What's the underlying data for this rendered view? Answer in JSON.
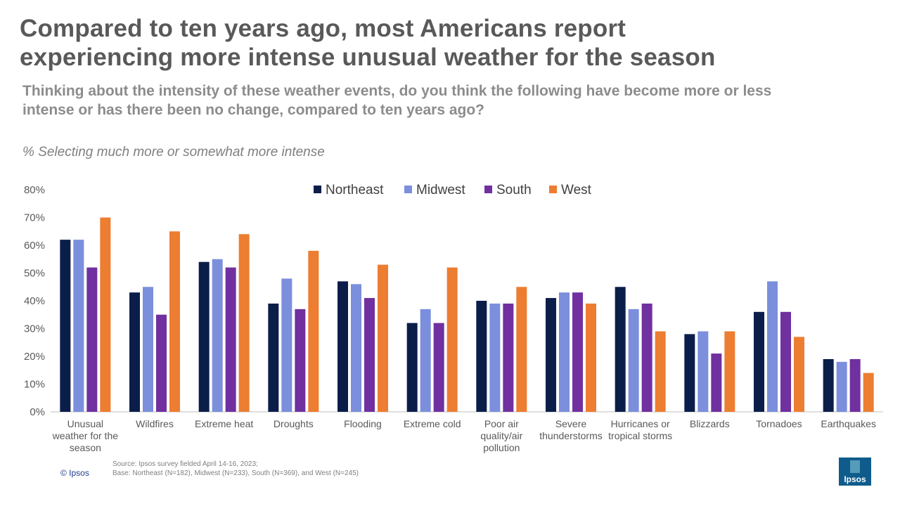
{
  "title_lines": [
    "Compared to ten years ago, most Americans report",
    "experiencing more intense unusual weather for the season"
  ],
  "question_lines": [
    "Thinking about the intensity of these weather events, do you think the following have become more or less",
    "intense or has there been no change, compared to ten years ago?"
  ],
  "measure_label": "% Selecting much more or somewhat more intense",
  "source_lines": [
    "Source: Ipsos survey fielded April 14-16, 2023;",
    "Base: Northeast (N=182), Midwest (N=233), South (N=369), and West (N=245)"
  ],
  "copyright": "© Ipsos",
  "logo_text": "Ipsos",
  "colors": {
    "northeast": "#0b1e4a",
    "midwest": "#7b8fdc",
    "south": "#7030a0",
    "west": "#ed7d31",
    "logo": "#0f5c8c"
  },
  "chart_data": {
    "type": "bar",
    "title": "Compared to ten years ago, most Americans report experiencing more intense unusual weather for the season",
    "xlabel": "",
    "ylabel": "% Selecting much more or somewhat more intense",
    "ylim": [
      0,
      80
    ],
    "yticks": [
      "0%",
      "10%",
      "20%",
      "30%",
      "40%",
      "50%",
      "60%",
      "70%",
      "80%"
    ],
    "legend_position": "top",
    "grid": false,
    "categories": [
      [
        "Unusual",
        "weather for the",
        "season"
      ],
      [
        "Wildfires"
      ],
      [
        "Extreme heat"
      ],
      [
        "Droughts"
      ],
      [
        "Flooding"
      ],
      [
        "Extreme cold"
      ],
      [
        "Poor air",
        "quality/air",
        "pollution"
      ],
      [
        "Severe",
        "thunderstorms"
      ],
      [
        "Hurricanes or",
        "tropical storms"
      ],
      [
        "Blizzards"
      ],
      [
        "Tornadoes"
      ],
      [
        "Earthquakes"
      ]
    ],
    "series": [
      {
        "name": "Northeast",
        "color": "#0b1e4a",
        "values": [
          62,
          43,
          54,
          39,
          47,
          32,
          40,
          41,
          45,
          28,
          36,
          19
        ]
      },
      {
        "name": "Midwest",
        "color": "#7b8fdc",
        "values": [
          62,
          45,
          55,
          48,
          46,
          37,
          39,
          43,
          37,
          29,
          47,
          18
        ]
      },
      {
        "name": "South",
        "color": "#7030a0",
        "values": [
          52,
          35,
          52,
          37,
          41,
          32,
          39,
          43,
          39,
          21,
          36,
          19
        ]
      },
      {
        "name": "West",
        "color": "#ed7d31",
        "values": [
          70,
          65,
          64,
          58,
          53,
          52,
          45,
          39,
          29,
          29,
          27,
          14
        ]
      }
    ]
  }
}
